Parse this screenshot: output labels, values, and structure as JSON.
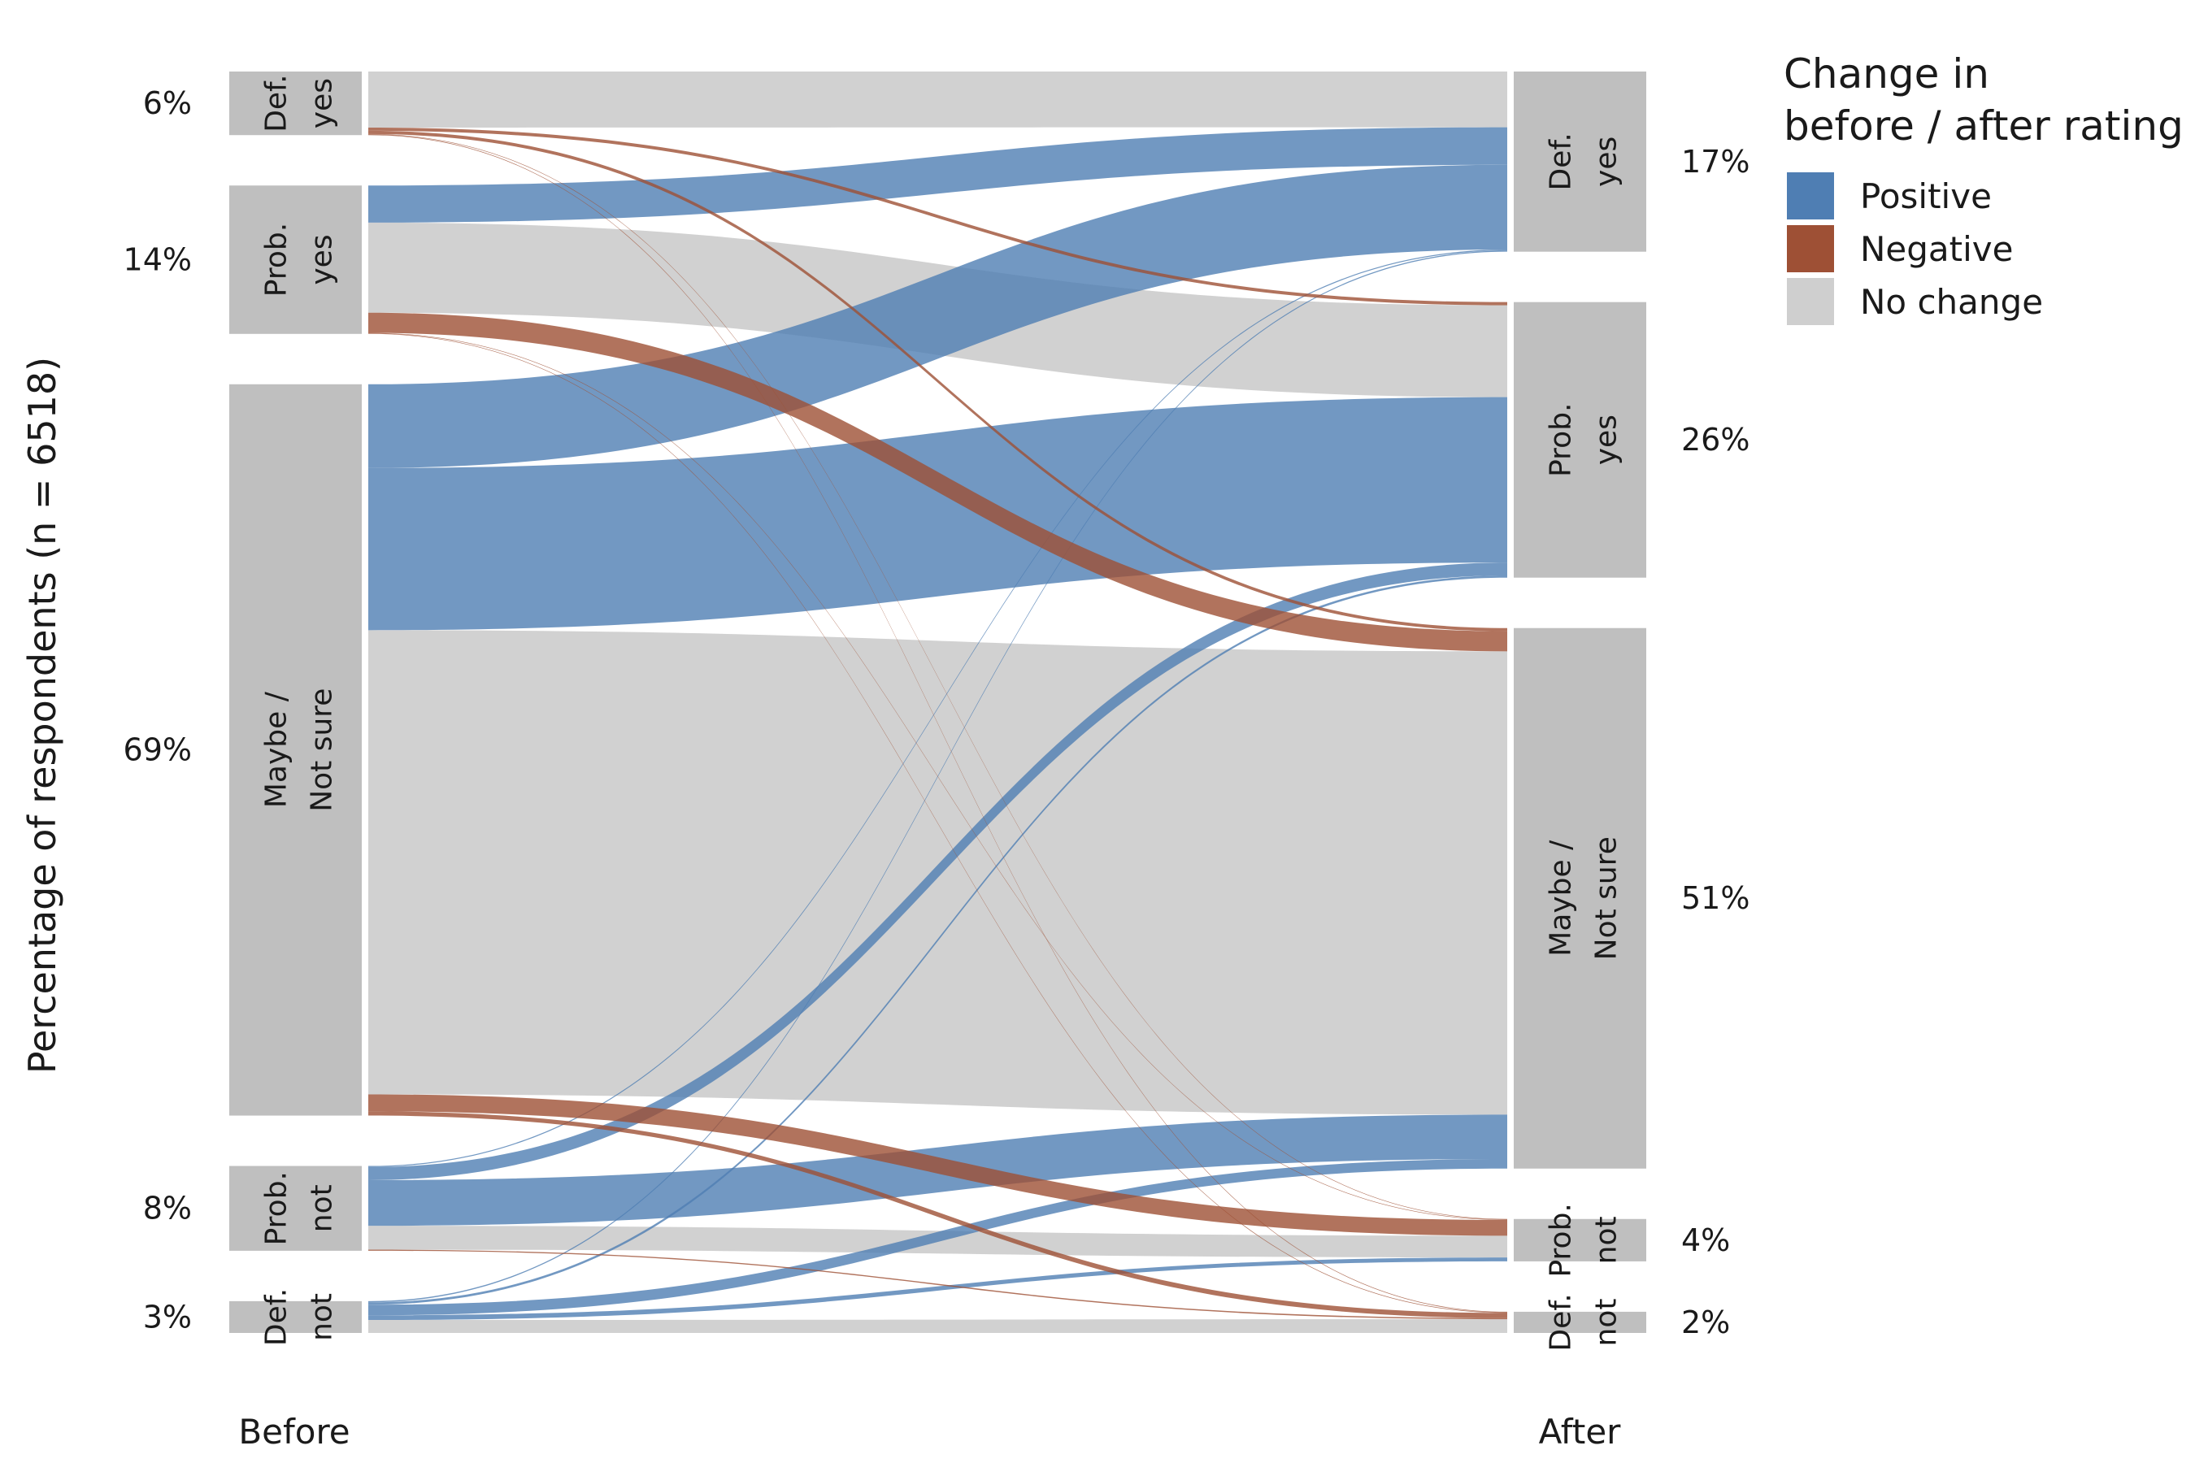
{
  "chart_data": {
    "type": "alluvial",
    "ylabel": "Percentage of respondents (n = 6518)",
    "stages": [
      "Before",
      "After"
    ],
    "categories": [
      {
        "id": "def_yes",
        "label": "Def.\nyes"
      },
      {
        "id": "prob_yes",
        "label": "Prob.\nyes"
      },
      {
        "id": "maybe",
        "label": "Maybe /\nNot sure"
      },
      {
        "id": "prob_not",
        "label": "Prob.\nnot"
      },
      {
        "id": "def_not",
        "label": "Def.\nnot"
      }
    ],
    "before": [
      {
        "id": "def_yes",
        "percent": 6,
        "label": "6%"
      },
      {
        "id": "prob_yes",
        "percent": 14,
        "label": "14%"
      },
      {
        "id": "maybe",
        "percent": 69,
        "label": "69%"
      },
      {
        "id": "prob_not",
        "percent": 8,
        "label": "8%"
      },
      {
        "id": "def_not",
        "percent": 3,
        "label": "3%"
      }
    ],
    "after": [
      {
        "id": "def_yes",
        "percent": 17,
        "label": "17%"
      },
      {
        "id": "prob_yes",
        "percent": 26,
        "label": "26%"
      },
      {
        "id": "maybe",
        "percent": 51,
        "label": "51%"
      },
      {
        "id": "prob_not",
        "percent": 4,
        "label": "4%"
      },
      {
        "id": "def_not",
        "percent": 2,
        "label": "2%"
      }
    ],
    "flows": [
      {
        "from": "def_yes",
        "to": "def_yes",
        "percent": 5.2,
        "change": "No change"
      },
      {
        "from": "def_yes",
        "to": "prob_yes",
        "percent": 0.3,
        "change": "Negative"
      },
      {
        "from": "def_yes",
        "to": "maybe",
        "percent": 0.3,
        "change": "Negative"
      },
      {
        "from": "def_yes",
        "to": "prob_not",
        "percent": 0.05,
        "change": "Negative"
      },
      {
        "from": "def_yes",
        "to": "def_not",
        "percent": 0.05,
        "change": "Negative"
      },
      {
        "from": "prob_yes",
        "to": "def_yes",
        "percent": 3.5,
        "change": "Positive"
      },
      {
        "from": "prob_yes",
        "to": "prob_yes",
        "percent": 8.5,
        "change": "No change"
      },
      {
        "from": "prob_yes",
        "to": "maybe",
        "percent": 1.9,
        "change": "Negative"
      },
      {
        "from": "prob_yes",
        "to": "prob_not",
        "percent": 0.05,
        "change": "Negative"
      },
      {
        "from": "prob_yes",
        "to": "def_not",
        "percent": 0.05,
        "change": "Negative"
      },
      {
        "from": "maybe",
        "to": "def_yes",
        "percent": 7.9,
        "change": "Positive"
      },
      {
        "from": "maybe",
        "to": "prob_yes",
        "percent": 15.3,
        "change": "Positive"
      },
      {
        "from": "maybe",
        "to": "maybe",
        "percent": 43.8,
        "change": "No change"
      },
      {
        "from": "maybe",
        "to": "prob_not",
        "percent": 1.6,
        "change": "Negative"
      },
      {
        "from": "maybe",
        "to": "def_not",
        "percent": 0.4,
        "change": "Negative"
      },
      {
        "from": "prob_not",
        "to": "def_yes",
        "percent": 0.1,
        "change": "Positive"
      },
      {
        "from": "prob_not",
        "to": "prob_yes",
        "percent": 1.2,
        "change": "Positive"
      },
      {
        "from": "prob_not",
        "to": "maybe",
        "percent": 4.2,
        "change": "Positive"
      },
      {
        "from": "prob_not",
        "to": "prob_not",
        "percent": 2.2,
        "change": "No change"
      },
      {
        "from": "prob_not",
        "to": "def_not",
        "percent": 0.1,
        "change": "Negative"
      },
      {
        "from": "def_not",
        "to": "def_yes",
        "percent": 0.1,
        "change": "Positive"
      },
      {
        "from": "def_not",
        "to": "prob_yes",
        "percent": 0.2,
        "change": "Positive"
      },
      {
        "from": "def_not",
        "to": "maybe",
        "percent": 0.9,
        "change": "Positive"
      },
      {
        "from": "def_not",
        "to": "prob_not",
        "percent": 0.4,
        "change": "Positive"
      },
      {
        "from": "def_not",
        "to": "def_not",
        "percent": 1.1,
        "change": "No change"
      }
    ],
    "legend": {
      "title": "Change in\nbefore / after rating",
      "placement": "top-right",
      "items": [
        {
          "label": "Positive",
          "color": "#4f7eb3"
        },
        {
          "label": "Negative",
          "color": "#9e5035"
        },
        {
          "label": "No change",
          "color": "#cfcfcf"
        }
      ]
    },
    "node_color": "#bfbfbf"
  }
}
